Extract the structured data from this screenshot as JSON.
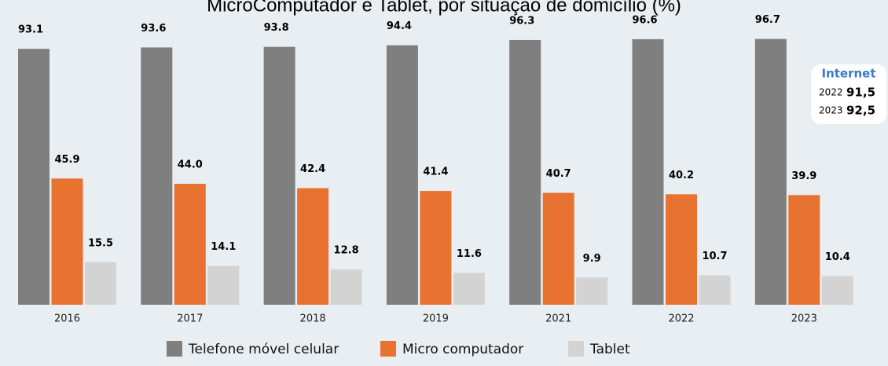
{
  "chart_data": {
    "type": "bar",
    "title": "MicroComputador e Tablet, por situação de domicílio (%)",
    "categories": [
      "2016",
      "2017",
      "2018",
      "2019",
      "2021",
      "2022",
      "2023"
    ],
    "series": [
      {
        "name": "Telefone móvel celular",
        "color": "#7f7f7f",
        "values": [
          93.1,
          93.6,
          93.8,
          94.4,
          96.3,
          96.6,
          96.7
        ],
        "value_labels": [
          "93.1",
          "93.6",
          "93.8",
          "94.4",
          "96.3",
          "96.6",
          "96.7"
        ]
      },
      {
        "name": "Micro computador",
        "color": "#e87331",
        "values": [
          45.9,
          44.0,
          42.4,
          41.4,
          40.7,
          40.2,
          39.9
        ],
        "value_labels": [
          "45.9",
          "44.0",
          "42.4",
          "41.4",
          "40.7",
          "40.2",
          "39.9"
        ]
      },
      {
        "name": "Tablet",
        "color": "#d3d3d3",
        "values": [
          15.5,
          14.1,
          12.8,
          11.6,
          9.9,
          10.7,
          10.4
        ],
        "value_labels": [
          "15.5",
          "14.1",
          "12.8",
          "11.6",
          "9.9",
          "10.7",
          "10.4"
        ]
      }
    ],
    "ylim": [
      0,
      100
    ],
    "annotation": {
      "title": "Internet",
      "rows": [
        {
          "year": "2022",
          "value": "91,5"
        },
        {
          "year": "2023",
          "value": "92,5"
        }
      ]
    }
  }
}
